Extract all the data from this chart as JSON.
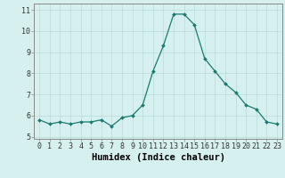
{
  "x": [
    0,
    1,
    2,
    3,
    4,
    5,
    6,
    7,
    8,
    9,
    10,
    11,
    12,
    13,
    14,
    15,
    16,
    17,
    18,
    19,
    20,
    21,
    22,
    23
  ],
  "y": [
    5.8,
    5.6,
    5.7,
    5.6,
    5.7,
    5.7,
    5.8,
    5.5,
    5.9,
    6.0,
    6.5,
    8.1,
    9.3,
    10.8,
    10.8,
    10.3,
    8.7,
    8.1,
    7.5,
    7.1,
    6.5,
    6.3,
    5.7,
    5.6
  ],
  "xlabel": "Humidex (Indice chaleur)",
  "xlim": [
    -0.5,
    23.5
  ],
  "ylim": [
    4.9,
    11.3
  ],
  "yticks": [
    5,
    6,
    7,
    8,
    9,
    10,
    11
  ],
  "xticks": [
    0,
    1,
    2,
    3,
    4,
    5,
    6,
    7,
    8,
    9,
    10,
    11,
    12,
    13,
    14,
    15,
    16,
    17,
    18,
    19,
    20,
    21,
    22,
    23
  ],
  "line_color": "#1a7a6e",
  "marker": "D",
  "marker_size": 2.0,
  "bg_color": "#d6f0ef",
  "grid_color": "#b8dbd8",
  "xlabel_fontsize": 7.5,
  "tick_fontsize": 6.0
}
